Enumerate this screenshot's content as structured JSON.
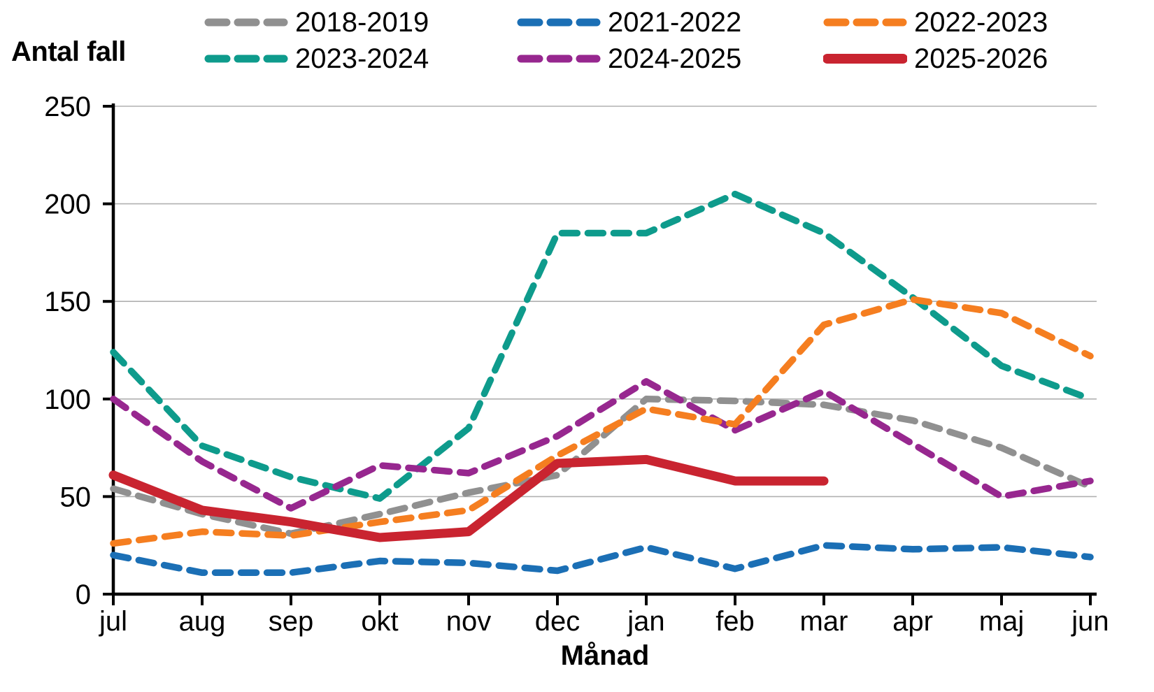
{
  "chart_data": {
    "type": "line",
    "title": "",
    "ylabel": "Antal fall",
    "xlabel": "Månad",
    "x_categories": [
      "jul",
      "aug",
      "sep",
      "okt",
      "nov",
      "dec",
      "jan",
      "feb",
      "mar",
      "apr",
      "maj",
      "jun"
    ],
    "y_ticks": [
      0,
      50,
      100,
      150,
      200,
      250
    ],
    "ylim": [
      0,
      250
    ],
    "grid": "horizontal-gridlines",
    "legend_position": "top",
    "gridline_color": "#b0b0b0",
    "axis_color": "#000000",
    "series": [
      {
        "name": "2018-2019",
        "color": "#909090",
        "style": "dashed",
        "values": [
          54,
          41,
          31,
          41,
          52,
          61,
          100,
          99,
          97,
          89,
          75,
          55
        ]
      },
      {
        "name": "2021-2022",
        "color": "#1b6fb5",
        "style": "dashed",
        "values": [
          20,
          11,
          11,
          17,
          16,
          12,
          24,
          13,
          25,
          23,
          24,
          19
        ]
      },
      {
        "name": "2022-2023",
        "color": "#f57e20",
        "style": "dashed",
        "values": [
          26,
          32,
          30,
          37,
          43,
          71,
          95,
          87,
          138,
          151,
          144,
          122
        ]
      },
      {
        "name": "2023-2024",
        "color": "#0e9b8c",
        "style": "dashed",
        "values": [
          124,
          76,
          60,
          49,
          85,
          185,
          185,
          205,
          185,
          152,
          117,
          100
        ]
      },
      {
        "name": "2024-2025",
        "color": "#97278f",
        "style": "dashed",
        "values": [
          100,
          68,
          44,
          66,
          62,
          81,
          109,
          84,
          104,
          77,
          50,
          58
        ]
      },
      {
        "name": "2025-2026",
        "color": "#c92430",
        "style": "solid",
        "values": [
          61,
          43,
          37,
          29,
          32,
          67,
          69,
          58,
          58,
          null,
          null,
          null
        ]
      }
    ]
  }
}
